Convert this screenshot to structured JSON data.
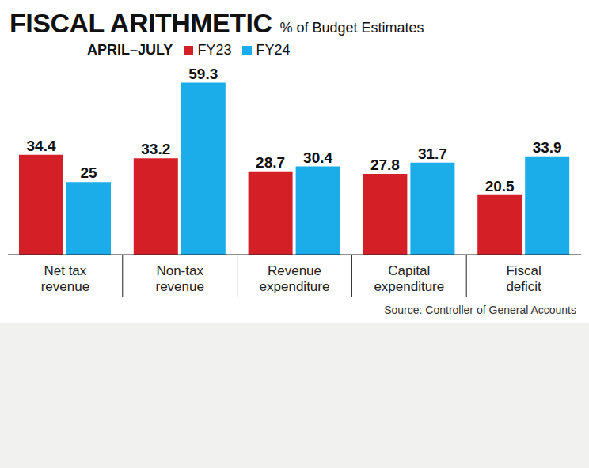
{
  "chart_data": {
    "type": "bar",
    "title": "FISCAL ARITHMETIC",
    "subtitle": "% of Budget Estimates",
    "legend_title": "APRIL–JULY",
    "note": "Source: Controller of General Accounts",
    "categories": [
      "Net tax revenue",
      "Non-tax revenue",
      "Revenue expenditure",
      "Capital expenditure",
      "Fiscal deficit"
    ],
    "series": [
      {
        "name": "FY23",
        "color": "#d41f26",
        "values": [
          34.4,
          33.2,
          28.7,
          27.8,
          20.5
        ]
      },
      {
        "name": "FY24",
        "color": "#1badea",
        "values": [
          25,
          59.3,
          30.4,
          31.7,
          33.9
        ]
      }
    ],
    "ylim": [
      0,
      60
    ],
    "data_labels": true,
    "legend": "top",
    "tick_labels": "x",
    "grid": false
  }
}
